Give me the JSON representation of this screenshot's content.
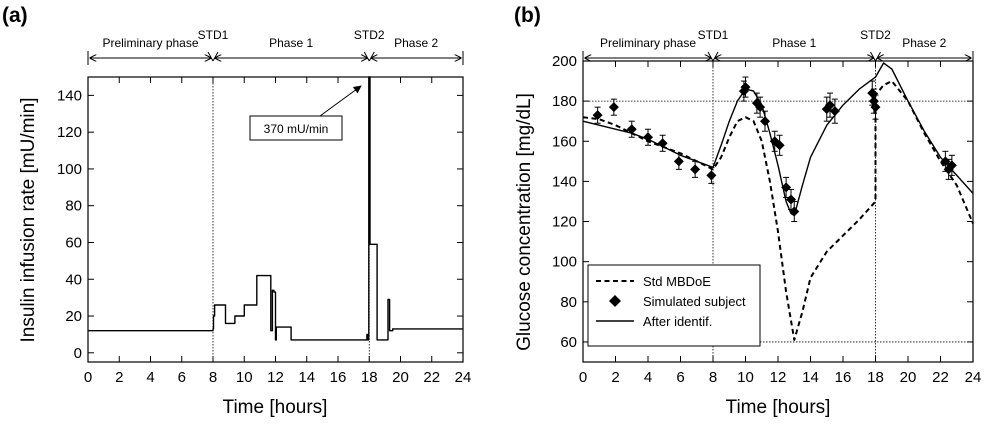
{
  "chart_data": [
    {
      "panel_label": "(a)",
      "type": "line",
      "title": "",
      "xlabel": "Time [hours]",
      "ylabel": "Insulin infusion rate [mU/min]",
      "xlim": [
        0,
        24
      ],
      "ylim": [
        -5,
        150
      ],
      "xticks": [
        0,
        2,
        4,
        6,
        8,
        10,
        12,
        14,
        16,
        18,
        20,
        22,
        24
      ],
      "yticks": [
        0,
        20,
        40,
        60,
        80,
        100,
        120,
        140
      ],
      "grid": false,
      "vlines": [
        8,
        18
      ],
      "phases": [
        {
          "label": "Preliminary phase",
          "from": 0,
          "to": 8
        },
        {
          "label": "Phase 1",
          "from": 8,
          "to": 18
        },
        {
          "label": "Phase 2",
          "from": 18,
          "to": 24
        }
      ],
      "markers": [
        {
          "label": "STD1",
          "x": 8
        },
        {
          "label": "STD2",
          "x": 18
        }
      ],
      "annotations": [
        {
          "text": "370 mU/min",
          "x": 17.9,
          "y": 150
        }
      ],
      "series": [
        {
          "style": "solid",
          "x": [
            0,
            8,
            8,
            8.03,
            8.03,
            8.1,
            8.1,
            8.8,
            8.8,
            9.4,
            9.4,
            10,
            10,
            10.8,
            10.8,
            11.7,
            11.7,
            11.8,
            11.8,
            11.9,
            11.9,
            12,
            12,
            12.05,
            12.05,
            13,
            13,
            13.05,
            13.05,
            17.85,
            17.85,
            17.9,
            17.9,
            17.97,
            17.97,
            18.05,
            18.05,
            18.5,
            18.5,
            19.2,
            19.2,
            19.3,
            19.3,
            19.5,
            19.5,
            24
          ],
          "y": [
            12,
            12,
            13,
            13,
            20,
            20,
            26,
            26,
            16,
            16,
            20,
            20,
            26,
            26,
            42,
            42,
            12,
            12,
            34,
            34,
            33,
            33,
            7,
            7,
            14,
            14,
            7,
            7,
            7,
            7,
            10,
            10,
            7,
            7,
            150,
            150,
            59,
            59,
            7,
            7,
            29,
            29,
            12,
            12,
            13,
            13
          ]
        }
      ]
    },
    {
      "panel_label": "(b)",
      "type": "line",
      "title": "",
      "xlabel": "Time [hours]",
      "ylabel": "Glucose concentration [mg/dL]",
      "xlim": [
        0,
        24
      ],
      "ylim": [
        50,
        200
      ],
      "xticks": [
        0,
        2,
        4,
        6,
        8,
        10,
        12,
        14,
        16,
        18,
        20,
        22,
        24
      ],
      "yticks": [
        60,
        80,
        100,
        120,
        140,
        160,
        180,
        200
      ],
      "grid": false,
      "hlines": [
        180,
        60
      ],
      "vlines": [
        8,
        18
      ],
      "legend_position": "lower-left",
      "phases": [
        {
          "label": "Preliminary phase",
          "from": 0,
          "to": 8
        },
        {
          "label": "Phase 1",
          "from": 8,
          "to": 18
        },
        {
          "label": "Phase 2",
          "from": 18,
          "to": 24
        }
      ],
      "markers": [
        {
          "label": "STD1",
          "x": 8
        },
        {
          "label": "STD2",
          "x": 18
        }
      ],
      "series": [
        {
          "name": "Std MBDoE",
          "style": "dashed",
          "x": [
            0,
            1,
            2,
            3,
            4,
            5,
            6,
            7,
            8,
            8.5,
            9,
            9.5,
            10,
            10.5,
            11,
            11.5,
            12,
            12.5,
            13,
            13.5,
            14,
            15,
            16,
            17,
            18,
            18,
            18.5,
            19,
            20,
            21,
            22,
            23,
            24
          ],
          "y": [
            172,
            171,
            168,
            164,
            160,
            157,
            154,
            150,
            146,
            152,
            162,
            170,
            172,
            170,
            160,
            140,
            115,
            85,
            61,
            75,
            92,
            105,
            113,
            121,
            130,
            183,
            188,
            190,
            180,
            164,
            150,
            138,
            119
          ]
        },
        {
          "name": "Simulated subject",
          "style": "markers",
          "x": [
            0.9,
            1.9,
            3,
            4,
            4.9,
            5.9,
            6.9,
            7.9,
            9.9,
            10,
            10.7,
            10.9,
            11.2,
            11.8,
            12.1,
            12.5,
            12.8,
            13,
            15,
            15.2,
            15.5,
            17.8,
            17.9,
            18,
            22.3,
            22.5,
            22.7
          ],
          "y": [
            173,
            177,
            166,
            162,
            159,
            150,
            146,
            143,
            185,
            187,
            179,
            177,
            170,
            160,
            158,
            137,
            131,
            125,
            176,
            178,
            175,
            184,
            180,
            177,
            150,
            146,
            148
          ],
          "err": [
            4,
            4,
            4,
            4,
            4,
            4,
            4,
            4,
            5,
            5,
            5,
            5,
            5,
            5,
            5,
            5,
            5,
            5,
            6,
            6,
            6,
            6,
            6,
            6,
            5,
            5,
            5
          ]
        },
        {
          "name": "After identif.",
          "style": "solid",
          "x": [
            0,
            1,
            2,
            3,
            4,
            5,
            6,
            7,
            8,
            8.5,
            9,
            9.5,
            10,
            10.5,
            11,
            11.5,
            12,
            12.5,
            12.8,
            13,
            13.5,
            14,
            15,
            16,
            17,
            18,
            18.5,
            19,
            20,
            21,
            22,
            23,
            24
          ],
          "y": [
            170,
            168,
            166,
            164,
            161,
            157,
            153,
            150,
            147,
            158,
            170,
            180,
            186,
            185,
            178,
            164,
            148,
            130,
            124,
            123,
            138,
            152,
            168,
            178,
            186,
            192,
            199,
            196,
            180,
            165,
            152,
            143,
            134
          ]
        }
      ]
    }
  ],
  "panel_a": {
    "label": "(a)",
    "xlabel": "Time [hours]",
    "ylabel": "Insulin infusion rate [mU/min]",
    "phase_labels": [
      "Preliminary phase",
      "Phase 1",
      "Phase 2"
    ],
    "marker_labels": [
      "STD1",
      "STD2"
    ],
    "callout": "370 mU/min"
  },
  "panel_b": {
    "label": "(b)",
    "xlabel": "Time [hours]",
    "ylabel": "Glucose concentration [mg/dL]",
    "phase_labels": [
      "Preliminary phase",
      "Phase 1",
      "Phase 2"
    ],
    "marker_labels": [
      "STD1",
      "STD2"
    ],
    "legend": [
      "Std MBDoE",
      "Simulated subject",
      "After identif."
    ]
  }
}
